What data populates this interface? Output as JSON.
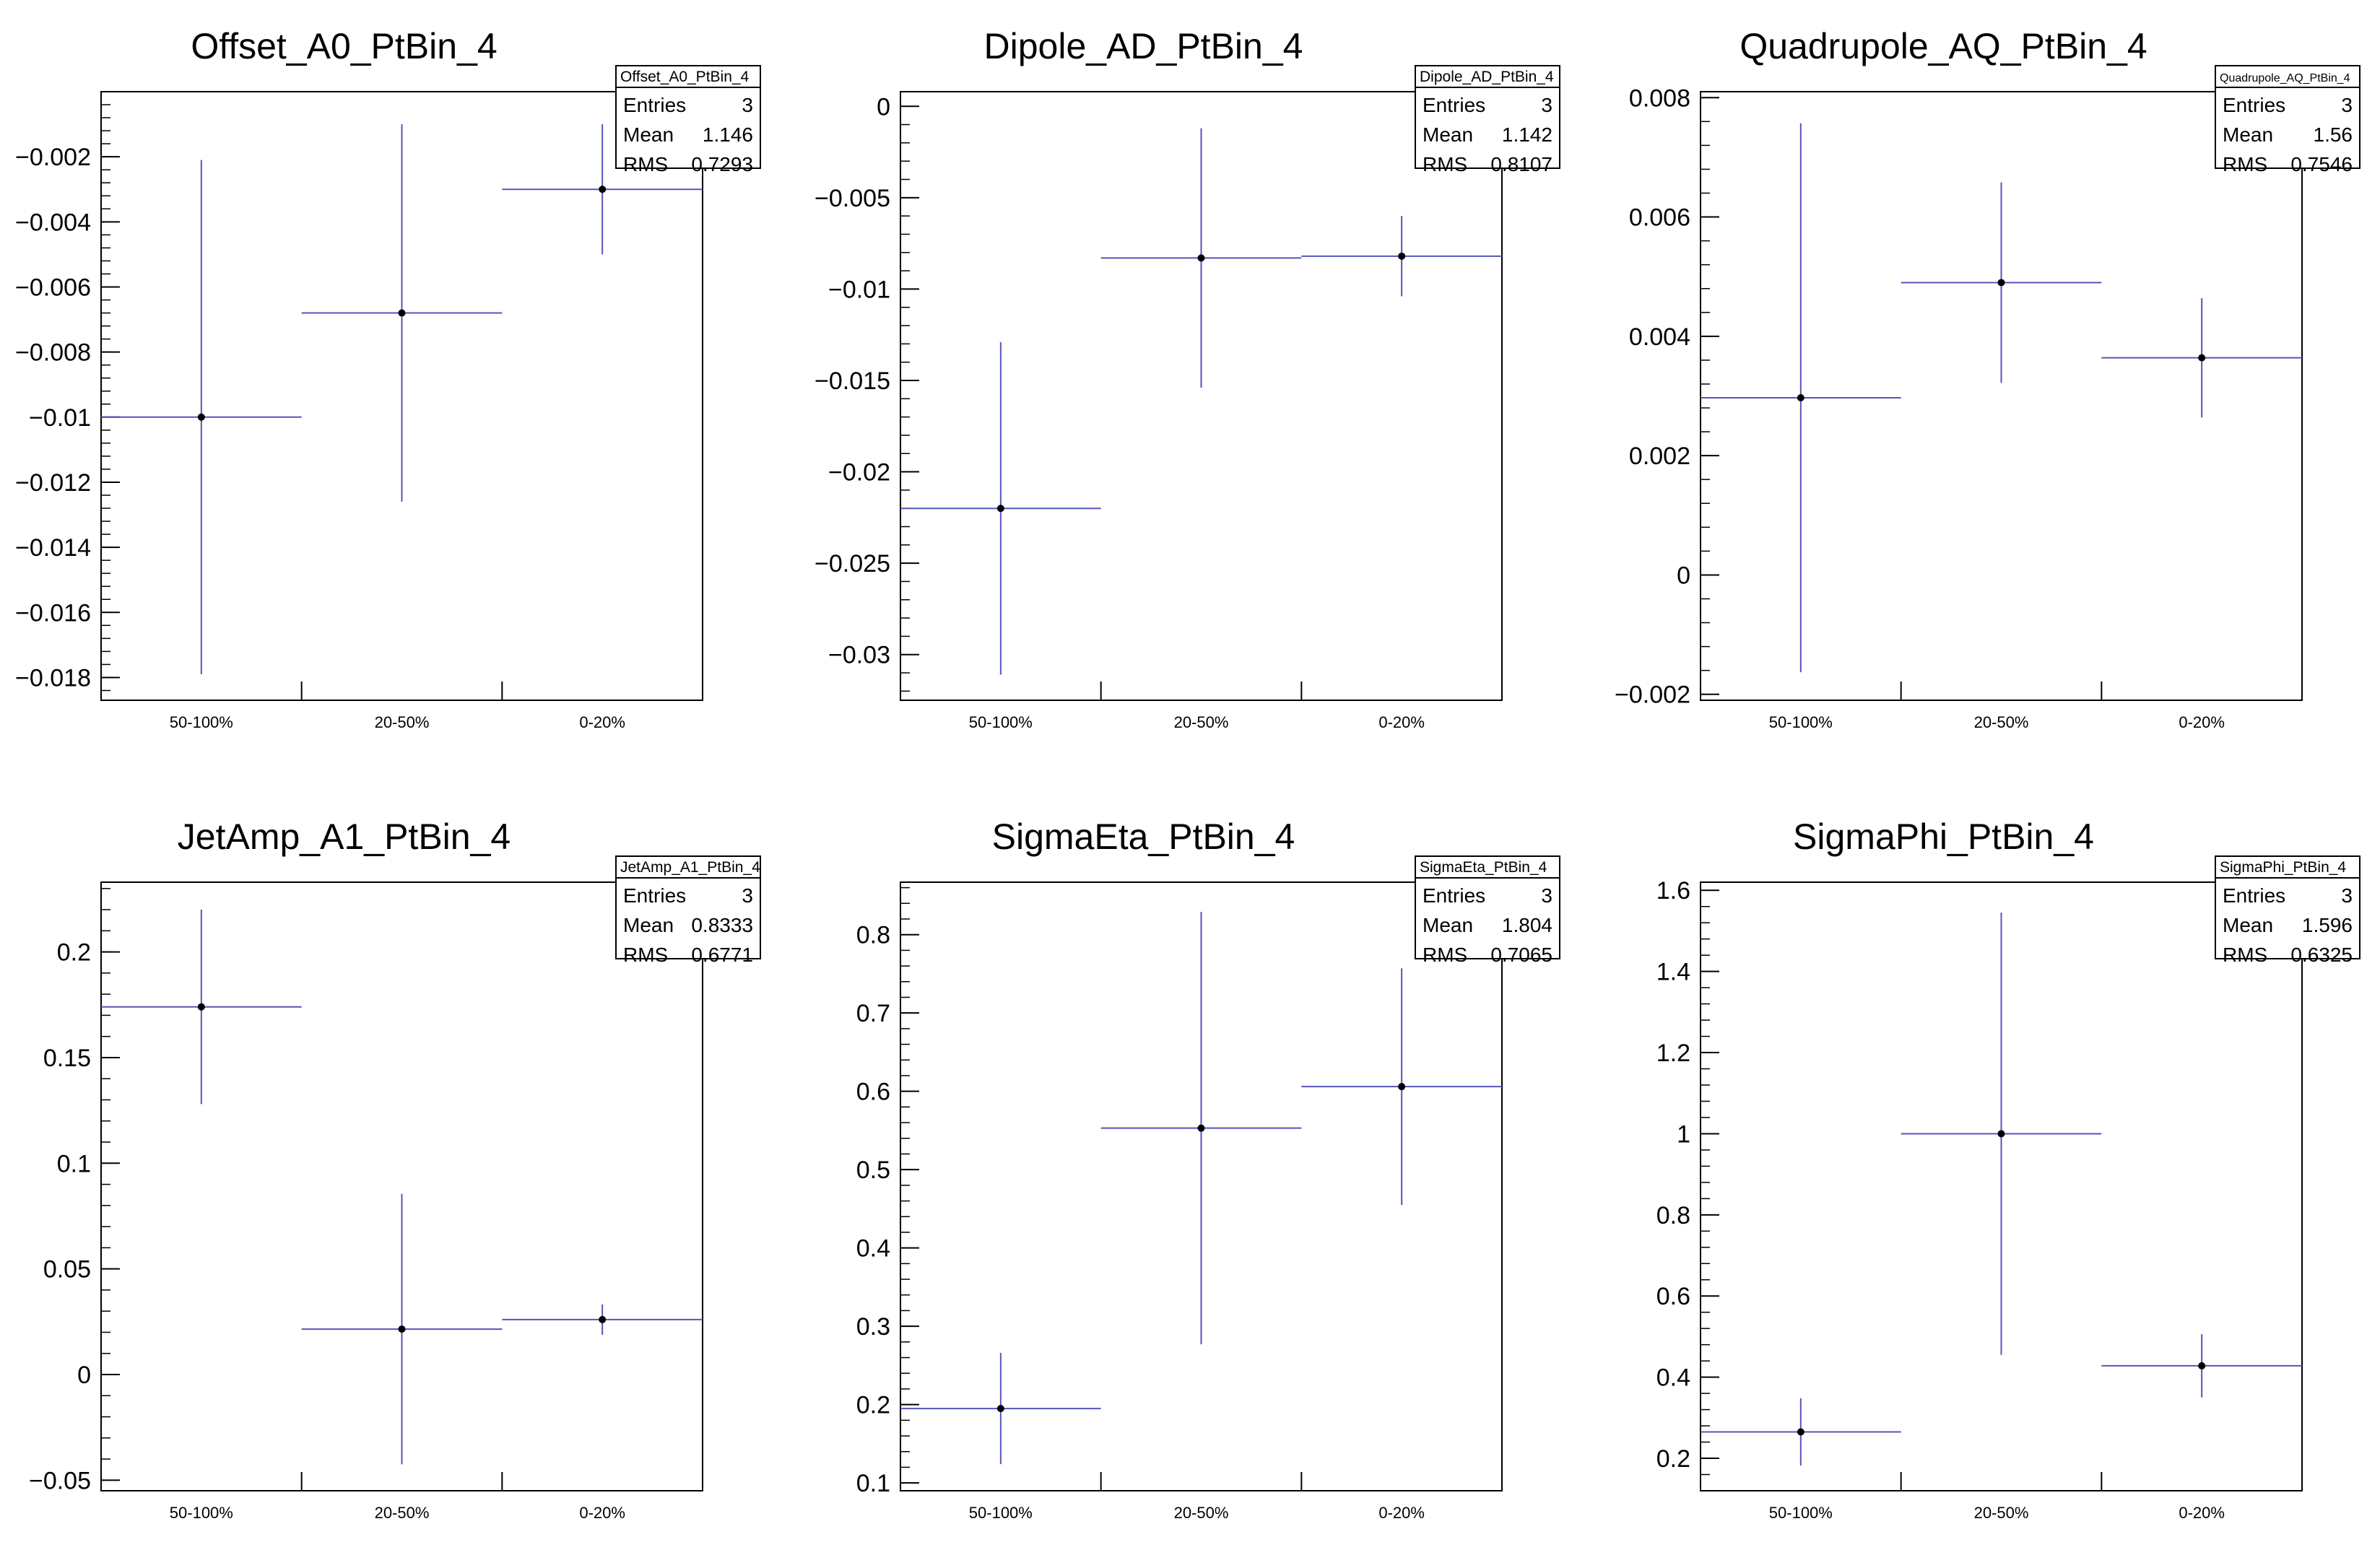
{
  "chart_data": [
    {
      "type": "errorbar",
      "title": "Offset_A0_PtBin_4",
      "categories": [
        "50-100%",
        "20-50%",
        "0-20%"
      ],
      "values": [
        -0.01,
        -0.0068,
        -0.003
      ],
      "errors": [
        0.0079,
        0.0058,
        0.002
      ],
      "ylim": [
        -0.0187,
        0.0
      ],
      "yticks": [
        -0.018,
        -0.016,
        -0.014,
        -0.012,
        -0.01,
        -0.008,
        -0.006,
        -0.004,
        -0.002
      ],
      "ytick_labels": [
        "−0.018",
        "−0.016",
        "−0.014",
        "−0.012",
        "−0.01",
        "−0.008",
        "−0.006",
        "−0.004",
        "−0.002"
      ],
      "stats": {
        "name": "Offset_A0_PtBin_4",
        "rows": [
          [
            "Entries",
            "3"
          ],
          [
            "Mean",
            "1.146"
          ],
          [
            "RMS",
            "0.7293"
          ]
        ]
      }
    },
    {
      "type": "errorbar",
      "title": "Dipole_AD_PtBin_4",
      "categories": [
        "50-100%",
        "20-50%",
        "0-20%"
      ],
      "values": [
        -0.022,
        -0.0083,
        -0.0082
      ],
      "errors": [
        0.0091,
        0.0071,
        0.0022
      ],
      "ylim": [
        -0.0325,
        0.0008
      ],
      "yticks": [
        0,
        -0.005,
        -0.01,
        -0.015,
        -0.02,
        -0.025,
        -0.03
      ],
      "ytick_labels": [
        "0",
        "−0.005",
        "−0.01",
        "−0.015",
        "−0.02",
        "−0.025",
        "−0.03"
      ],
      "stats": {
        "name": "Dipole_AD_PtBin_4",
        "rows": [
          [
            "Entries",
            "3"
          ],
          [
            "Mean",
            "1.142"
          ],
          [
            "RMS",
            "0.8107"
          ]
        ]
      }
    },
    {
      "type": "errorbar",
      "title": "Quadrupole_AQ_PtBin_4",
      "categories": [
        "50-100%",
        "20-50%",
        "0-20%"
      ],
      "values": [
        0.00297,
        0.0049,
        0.00364
      ],
      "errors": [
        0.0046,
        0.00168,
        0.001
      ],
      "ylim": [
        -0.0021,
        0.0081
      ],
      "yticks": [
        -0.002,
        0,
        0.002,
        0.004,
        0.006,
        0.008
      ],
      "ytick_labels": [
        "−0.002",
        "0",
        "0.002",
        "0.004",
        "0.006",
        "0.008"
      ],
      "stats": {
        "name": "Quadrupole_AQ_PtBin_4",
        "rows": [
          [
            "Entries",
            "3"
          ],
          [
            "Mean",
            "1.56"
          ],
          [
            "RMS",
            "0.7546"
          ]
        ]
      }
    },
    {
      "type": "errorbar",
      "title": "JetAmp_A1_PtBin_4",
      "categories": [
        "50-100%",
        "20-50%",
        "0-20%"
      ],
      "values": [
        0.174,
        0.0215,
        0.026
      ],
      "errors": [
        0.046,
        0.064,
        0.0072
      ],
      "ylim": [
        -0.055,
        0.233
      ],
      "yticks": [
        -0.05,
        0,
        0.05,
        0.1,
        0.15,
        0.2
      ],
      "ytick_labels": [
        "−0.05",
        "0",
        "0.05",
        "0.1",
        "0.15",
        "0.2"
      ],
      "stats": {
        "name": "JetAmp_A1_PtBin_4",
        "rows": [
          [
            "Entries",
            "3"
          ],
          [
            "Mean",
            "0.8333"
          ],
          [
            "RMS",
            "0.6771"
          ]
        ]
      }
    },
    {
      "type": "errorbar",
      "title": "SigmaEta_PtBin_4",
      "categories": [
        "50-100%",
        "20-50%",
        "0-20%"
      ],
      "values": [
        0.195,
        0.553,
        0.606
      ],
      "errors": [
        0.071,
        0.276,
        0.151
      ],
      "ylim": [
        0.09,
        0.867
      ],
      "yticks": [
        0.1,
        0.2,
        0.3,
        0.4,
        0.5,
        0.6,
        0.7,
        0.8
      ],
      "ytick_labels": [
        "0.1",
        "0.2",
        "0.3",
        "0.4",
        "0.5",
        "0.6",
        "0.7",
        "0.8"
      ],
      "stats": {
        "name": "SigmaEta_PtBin_4",
        "rows": [
          [
            "Entries",
            "3"
          ],
          [
            "Mean",
            "1.804"
          ],
          [
            "RMS",
            "0.7065"
          ]
        ]
      }
    },
    {
      "type": "errorbar",
      "title": "SigmaPhi_PtBin_4",
      "categories": [
        "50-100%",
        "20-50%",
        "0-20%"
      ],
      "values": [
        0.265,
        1.0,
        0.428
      ],
      "errors": [
        0.083,
        0.545,
        0.078
      ],
      "ylim": [
        0.12,
        1.62
      ],
      "yticks": [
        0.2,
        0.4,
        0.6,
        0.8,
        1.0,
        1.2,
        1.4,
        1.6
      ],
      "ytick_labels": [
        "0.2",
        "0.4",
        "0.6",
        "0.8",
        "1",
        "1.2",
        "1.4",
        "1.6"
      ],
      "stats": {
        "name": "SigmaPhi_PtBin_4",
        "rows": [
          [
            "Entries",
            "3"
          ],
          [
            "Mean",
            "1.596"
          ],
          [
            "RMS",
            "0.6325"
          ]
        ]
      }
    }
  ],
  "colors": {
    "marker_line": "#5555bb",
    "marker_point": "#000000",
    "frame": "#000000"
  }
}
